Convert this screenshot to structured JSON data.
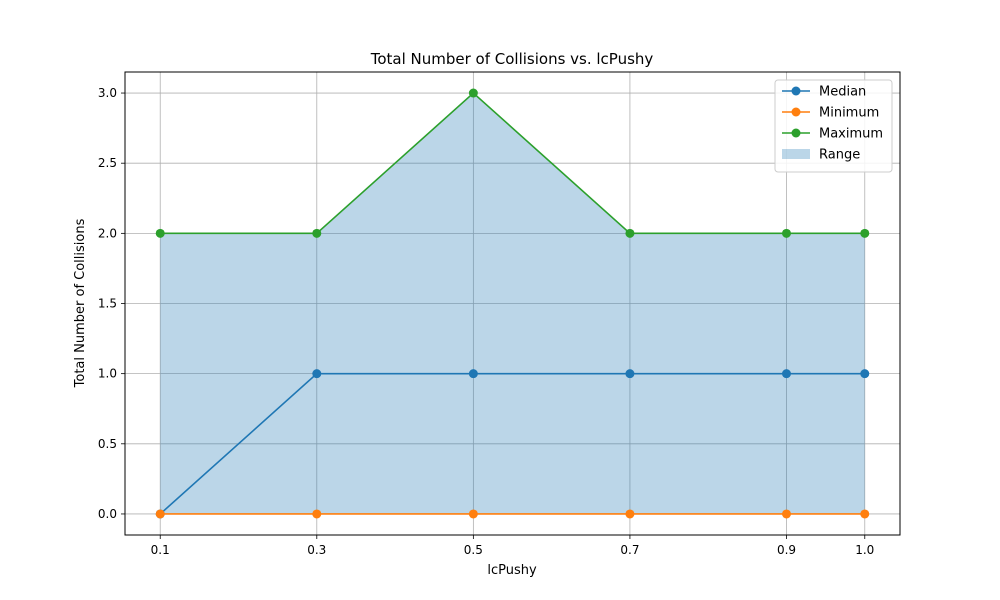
{
  "chart_data": {
    "type": "line",
    "title": "Total Number of Collisions vs. lcPushy",
    "xlabel": "lcPushy",
    "ylabel": "Total Number of Collisions",
    "x": [
      0.1,
      0.3,
      0.5,
      0.7,
      0.9,
      1.0
    ],
    "x_tick_labels": [
      "0.1",
      "0.3",
      "0.5",
      "0.7",
      "0.9",
      "1.0"
    ],
    "y_ticks": [
      0.0,
      0.5,
      1.0,
      1.5,
      2.0,
      2.5,
      3.0
    ],
    "y_tick_labels": [
      "0.0",
      "0.5",
      "1.0",
      "1.5",
      "2.0",
      "2.5",
      "3.0"
    ],
    "ylim": [
      -0.15,
      3.15
    ],
    "grid": true,
    "legend_position": "top-right",
    "series": [
      {
        "name": "Median",
        "values": [
          0,
          1,
          1,
          1,
          1,
          1
        ],
        "color": "#1f77b4",
        "marker": "circle"
      },
      {
        "name": "Minimum",
        "values": [
          0,
          0,
          0,
          0,
          0,
          0
        ],
        "color": "#ff7f0e",
        "marker": "circle"
      },
      {
        "name": "Maximum",
        "values": [
          2,
          2,
          3,
          2,
          2,
          2
        ],
        "color": "#2ca02c",
        "marker": "circle"
      }
    ],
    "range_band": {
      "name": "Range",
      "lower": "Minimum",
      "upper": "Maximum",
      "color": "#1f77b4",
      "opacity": 0.3
    }
  }
}
